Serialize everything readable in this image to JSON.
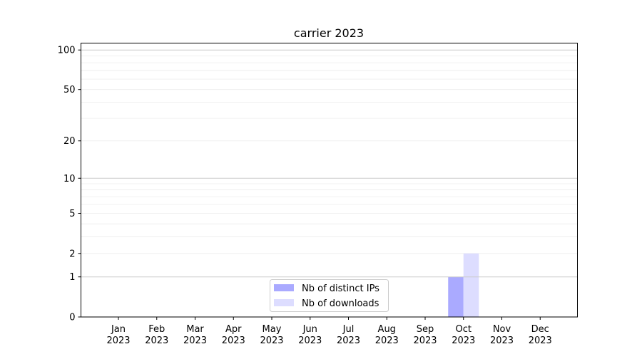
{
  "chart_data": {
    "type": "bar",
    "title": "carrier 2023",
    "xlabel": "",
    "ylabel": "",
    "y_scale": "log(1+y)",
    "ylim": [
      0,
      113
    ],
    "y_ticks": [
      0,
      1,
      2,
      5,
      10,
      20,
      50,
      100
    ],
    "grid": "horizontal, major and minor",
    "legend_position": "bottom-center",
    "categories": [
      "Jan\n2023",
      "Feb\n2023",
      "Mar\n2023",
      "Apr\n2023",
      "May\n2023",
      "Jun\n2023",
      "Jul\n2023",
      "Aug\n2023",
      "Sep\n2023",
      "Oct\n2023",
      "Nov\n2023",
      "Dec\n2023"
    ],
    "series": [
      {
        "name": "Nb of distinct IPs",
        "color": "#aaaaff",
        "values": [
          0,
          0,
          0,
          0,
          0,
          0,
          0,
          0,
          0,
          1,
          0,
          0
        ]
      },
      {
        "name": "Nb of downloads",
        "color": "#ddddff",
        "values": [
          0,
          0,
          0,
          0,
          0,
          0,
          0,
          0,
          0,
          2,
          0,
          0
        ]
      }
    ]
  }
}
